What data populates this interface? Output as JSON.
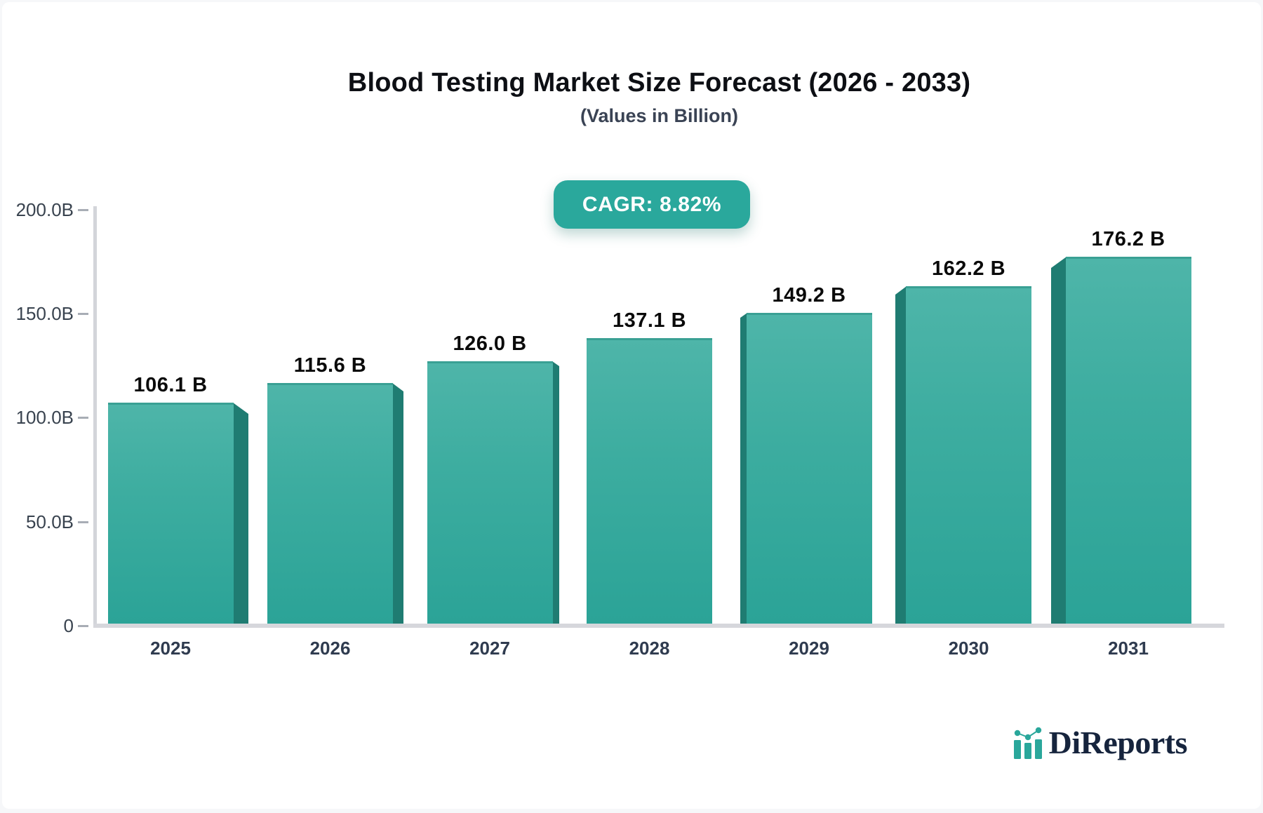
{
  "header": {
    "title": "Blood Testing Market Size Forecast (2026 - 2033)",
    "subtitle": "(Values in Billion)"
  },
  "badge": {
    "label": "CAGR: 8.82%",
    "background": "#2aa89c",
    "text_color": "#ffffff"
  },
  "chart_data": {
    "type": "bar",
    "title": "Blood Testing Market Size Forecast (2026 - 2033)",
    "subtitle": "(Values in Billion)",
    "unit": "Billion",
    "cagr_percent": 8.82,
    "categories": [
      "2025",
      "2026",
      "2027",
      "2028",
      "2029",
      "2030",
      "2031"
    ],
    "values": [
      106.1,
      115.6,
      126.0,
      137.1,
      149.2,
      162.2,
      176.2
    ],
    "value_labels": [
      "106.1 B",
      "115.6 B",
      "126.0 B",
      "137.1 B",
      "149.2 B",
      "162.2 B",
      "176.2 B"
    ],
    "y_ticks": [
      {
        "value": 0,
        "label": "0"
      },
      {
        "value": 50,
        "label": "50.0B"
      },
      {
        "value": 100,
        "label": "100.0B"
      },
      {
        "value": 150,
        "label": "150.0B"
      },
      {
        "value": 200,
        "label": "200.0B"
      }
    ],
    "ylim": [
      0,
      200
    ],
    "xlabel": "",
    "ylabel": "",
    "grid": false,
    "legend": false,
    "bar_style": "3d-beveled",
    "bar_color_top": "#4eb5a9",
    "bar_color_bottom": "#2ba397",
    "bar_side_color": "#1f7c72",
    "axis_color": "#d5d6db",
    "value_label_color": "#0a0a0a",
    "tick_label_color": "#39434f"
  },
  "logo": {
    "text": "DiReports",
    "icon": "bar-chart-logo-icon",
    "text_color": "#16243d",
    "icon_color": "#2aa79b"
  }
}
